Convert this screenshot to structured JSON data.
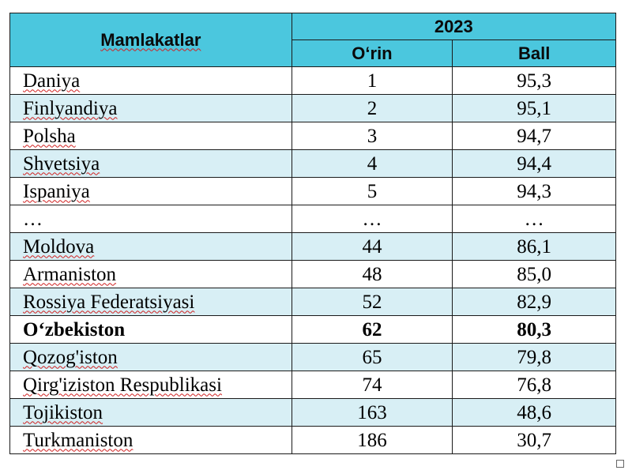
{
  "header": {
    "country_col": "Mamlakatlar",
    "year": "2023",
    "rank_col": "O‘rin",
    "score_col": "Ball"
  },
  "rows": [
    {
      "country": "Daniya",
      "rank": "1",
      "score": "95,3"
    },
    {
      "country": "Finlyandiya",
      "rank": "2",
      "score": "95,1"
    },
    {
      "country": "Polsha",
      "rank": "3",
      "score": "94,7"
    },
    {
      "country": "Shvetsiya",
      "rank": "4",
      "score": "94,4"
    },
    {
      "country": "Ispaniya",
      "rank": "5",
      "score": "94,3"
    },
    {
      "country": "…",
      "rank": "…",
      "score": "…"
    },
    {
      "country": "Moldova",
      "rank": "44",
      "score": "86,1"
    },
    {
      "country": "Armaniston",
      "rank": "48",
      "score": "85,0"
    },
    {
      "country": "Rossiya Federatsiyasi",
      "rank": "52",
      "score": "82,9"
    },
    {
      "country": "O‘zbekiston",
      "rank": "62",
      "score": "80,3"
    },
    {
      "country": "Qozog'iston",
      "rank": "65",
      "score": "79,8"
    },
    {
      "country": "Qirg'iziston Respublikasi",
      "rank": "74",
      "score": "76,8"
    },
    {
      "country": "Tojikiston",
      "rank": "163",
      "score": "48,6"
    },
    {
      "country": "Turkmaniston",
      "rank": "186",
      "score": "30,7"
    }
  ],
  "colors": {
    "header_bg": "#4bc7de",
    "alt_row_bg": "#d8eff5",
    "spellcheck_underline": "#d02020"
  }
}
